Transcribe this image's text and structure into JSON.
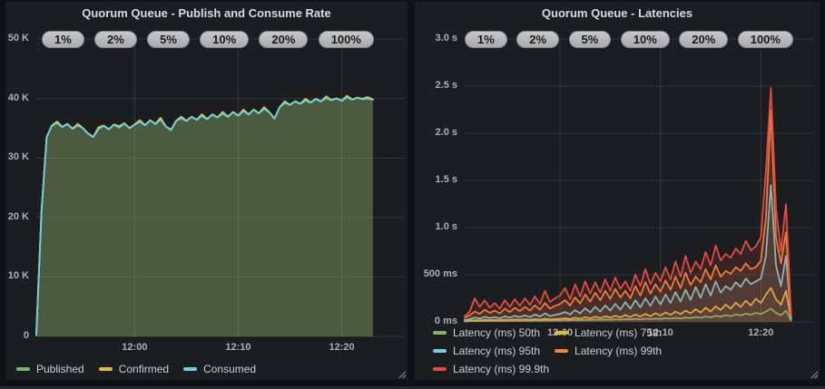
{
  "panels": [
    {
      "title": "Quorum Queue - Publish and Consume Rate",
      "annotations": [
        "1%",
        "2%",
        "5%",
        "10%",
        "20%",
        "100%"
      ],
      "chart_data": {
        "type": "area",
        "title": "Quorum Queue - Publish and Consume Rate",
        "x_unit": "time of day",
        "x_domain_minutes": [
          0,
          35.5
        ],
        "sample_step_minutes": 0.5,
        "x_ticks": [
          {
            "t": 9.5,
            "label": "12:00"
          },
          {
            "t": 19.5,
            "label": "12:10"
          },
          {
            "t": 29.5,
            "label": "12:20"
          }
        ],
        "y_unit": "messages/s (thousands)",
        "y_domain": [
          0,
          50
        ],
        "y_ticks": [
          {
            "v": 0,
            "label": "0"
          },
          {
            "v": 10,
            "label": "10 K"
          },
          {
            "v": 20,
            "label": "20 K"
          },
          {
            "v": 30,
            "label": "30 K"
          },
          {
            "v": 40,
            "label": "40 K"
          },
          {
            "v": 50,
            "label": "50 K"
          }
        ],
        "grid": true,
        "legend_position": "bottom",
        "series": [
          {
            "name": "Published",
            "color": "#7EB26D",
            "fill_opacity": 0.3,
            "values": [
              0.2,
              21,
              33.5,
              35.4,
              35.9,
              35.2,
              35.7,
              34.9,
              35.5,
              35.0,
              34.1,
              33.5,
              34.9,
              35.4,
              34.8,
              35.6,
              35.1,
              35.8,
              35.0,
              35.6,
              36.1,
              35.5,
              36.3,
              35.7,
              36.5,
              35.3,
              34.7,
              36.2,
              36.7,
              36.2,
              36.9,
              36.4,
              37.1,
              36.5,
              37.3,
              36.8,
              37.5,
              36.9,
              37.7,
              37.1,
              37.9,
              37.3,
              38.1,
              37.5,
              38.3,
              37.7,
              36.6,
              38.5,
              39.3,
              38.9,
              39.5,
              39.1,
              39.7,
              39.3,
              39.9,
              39.5,
              40.1,
              39.7,
              40.0,
              39.6,
              40.2,
              39.8,
              40.1,
              39.9,
              40.0,
              39.8
            ]
          },
          {
            "name": "Confirmed",
            "color": "#EAB839",
            "fill_opacity": 0.1,
            "values": [
              0.45,
              21.05,
              33.55,
              35.45,
              36.15,
              35.25,
              35.75,
              34.95,
              35.75,
              35.05,
              34.15,
              33.55,
              35.15,
              35.45,
              34.85,
              35.65,
              35.35,
              35.85,
              35.05,
              35.65,
              36.35,
              35.55,
              36.35,
              35.75,
              36.75,
              35.35,
              34.75,
              36.25,
              36.95,
              36.25,
              36.95,
              36.45,
              37.35,
              36.55,
              37.35,
              36.85,
              37.75,
              36.95,
              37.75,
              37.15,
              38.15,
              37.35,
              38.15,
              37.55,
              38.55,
              37.75,
              36.65,
              38.55,
              39.55,
              38.95,
              39.55,
              39.15,
              39.95,
              39.35,
              39.95,
              39.55,
              40.35,
              39.75,
              40.05,
              39.65,
              40.45,
              39.85,
              40.15,
              39.95,
              40.25,
              39.85
            ]
          },
          {
            "name": "Consumed",
            "color": "#6ED0E0",
            "fill_opacity": 0.05,
            "values": [
              0.2,
              21,
              33.5,
              35.4,
              35.9,
              35.2,
              35.7,
              34.9,
              35.5,
              35.0,
              34.1,
              33.5,
              34.9,
              35.4,
              34.8,
              35.6,
              35.1,
              35.8,
              35.0,
              35.6,
              36.1,
              35.5,
              36.3,
              35.7,
              36.5,
              35.3,
              34.7,
              36.2,
              36.7,
              36.2,
              36.9,
              36.4,
              37.1,
              36.5,
              37.3,
              36.8,
              37.5,
              36.9,
              37.7,
              37.1,
              37.9,
              37.3,
              38.1,
              37.5,
              38.3,
              37.7,
              36.6,
              38.5,
              39.3,
              38.9,
              39.5,
              39.1,
              39.7,
              39.3,
              39.9,
              39.5,
              40.1,
              39.7,
              40.0,
              39.6,
              40.2,
              39.8,
              40.1,
              39.9,
              40.0,
              39.8
            ]
          }
        ]
      }
    },
    {
      "title": "Quorum Queue - Latencies",
      "annotations": [
        "1%",
        "2%",
        "5%",
        "10%",
        "20%",
        "100%"
      ],
      "chart_data": {
        "type": "line",
        "title": "Quorum Queue - Latencies",
        "x_unit": "time of day",
        "x_domain_minutes": [
          0,
          34.8
        ],
        "sample_step_minutes": 0.5,
        "x_ticks": [
          {
            "t": 9.5,
            "label": "12:00"
          },
          {
            "t": 19.5,
            "label": "12:10"
          },
          {
            "t": 29.5,
            "label": "12:20"
          }
        ],
        "y_unit": "latency (ms)",
        "y_domain": [
          0,
          3000
        ],
        "y_ticks": [
          {
            "v": 0,
            "label": "0 ms"
          },
          {
            "v": 500,
            "label": "500 ms"
          },
          {
            "v": 1000,
            "label": "1.0 s"
          },
          {
            "v": 1500,
            "label": "1.5 s"
          },
          {
            "v": 2000,
            "label": "2.0 s"
          },
          {
            "v": 2500,
            "label": "2.5 s"
          },
          {
            "v": 3000,
            "label": "3.0 s"
          }
        ],
        "grid": true,
        "legend_position": "bottom",
        "series": [
          {
            "name": "Latency (ms) 50th",
            "color": "#7EB26D",
            "fill_opacity": 0.06,
            "values": [
              5,
              8,
              10,
              9,
              12,
              10,
              11,
              10,
              12,
              11,
              13,
              12,
              14,
              12,
              15,
              13,
              16,
              14,
              15,
              16,
              18,
              16,
              20,
              18,
              22,
              19,
              24,
              20,
              26,
              22,
              28,
              24,
              30,
              26,
              32,
              28,
              34,
              30,
              36,
              32,
              38,
              34,
              42,
              36,
              46,
              40,
              52,
              44,
              58,
              48,
              64,
              55,
              72,
              60,
              80,
              68,
              88,
              75,
              95,
              85,
              110,
              140,
              95,
              70,
              120,
              15
            ]
          },
          {
            "name": "Latency (ms) 75th",
            "color": "#EAB839",
            "fill_opacity": 0.06,
            "values": [
              10,
              14,
              18,
              15,
              22,
              18,
              20,
              17,
              24,
              20,
              26,
              22,
              28,
              22,
              30,
              24,
              34,
              26,
              30,
              32,
              38,
              30,
              44,
              34,
              50,
              38,
              55,
              40,
              60,
              45,
              65,
              48,
              72,
              52,
              78,
              56,
              85,
              60,
              92,
              68,
              100,
              75,
              110,
              82,
              120,
              90,
              135,
              100,
              150,
              110,
              165,
              125,
              185,
              140,
              205,
              160,
              225,
              175,
              245,
              200,
              290,
              360,
              240,
              180,
              330,
              25
            ]
          },
          {
            "name": "Latency (ms) 95th",
            "color": "#6ED0E0",
            "fill_opacity": 0.1,
            "values": [
              20,
              30,
              45,
              35,
              55,
              40,
              50,
              38,
              60,
              45,
              65,
              50,
              70,
              52,
              78,
              58,
              90,
              62,
              75,
              85,
              105,
              80,
              125,
              90,
              145,
              100,
              160,
              110,
              175,
              120,
              190,
              130,
              210,
              140,
              230,
              155,
              250,
              170,
              270,
              185,
              290,
              200,
              315,
              215,
              340,
              235,
              370,
              255,
              400,
              280,
              430,
              310,
              380,
              340,
              420,
              370,
              460,
              400,
              430,
              460,
              700,
              1450,
              600,
              380,
              700,
              40
            ]
          },
          {
            "name": "Latency (ms) 99th",
            "color": "#EF843C",
            "fill_opacity": 0.12,
            "values": [
              45,
              70,
              110,
              85,
              130,
              95,
              120,
              90,
              140,
              105,
              150,
              115,
              160,
              120,
              175,
              130,
              200,
              140,
              170,
              190,
              230,
              175,
              260,
              195,
              290,
              215,
              310,
              230,
              330,
              245,
              350,
              260,
              330,
              250,
              380,
              280,
              420,
              300,
              400,
              320,
              440,
              340,
              480,
              360,
              520,
              390,
              480,
              420,
              560,
              450,
              600,
              480,
              540,
              510,
              580,
              540,
              620,
              560,
              580,
              650,
              1100,
              2250,
              900,
              620,
              950,
              60
            ]
          },
          {
            "name": "Latency (ms) 99.9th",
            "color": "#E24D42",
            "fill_opacity": 0.14,
            "values": [
              60,
              110,
              250,
              160,
              230,
              150,
              200,
              140,
              230,
              160,
              240,
              170,
              250,
              180,
              270,
              190,
              330,
              210,
              250,
              280,
              360,
              240,
              400,
              270,
              430,
              300,
              420,
              310,
              450,
              330,
              470,
              350,
              430,
              330,
              500,
              380,
              560,
              400,
              520,
              430,
              580,
              450,
              640,
              480,
              700,
              520,
              640,
              560,
              740,
              600,
              810,
              650,
              720,
              680,
              780,
              720,
              860,
              760,
              800,
              900,
              1600,
              2480,
              1200,
              750,
              1250,
              80
            ]
          }
        ]
      }
    }
  ]
}
